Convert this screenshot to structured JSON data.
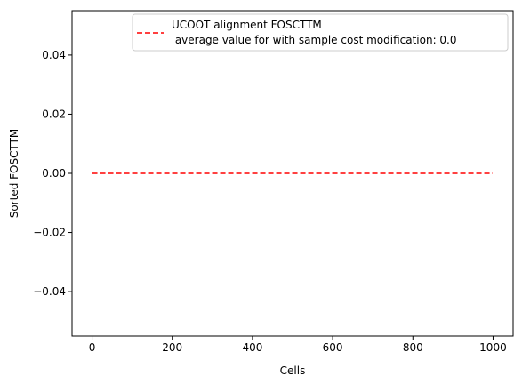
{
  "chart_data": {
    "type": "line",
    "xlabel": "Cells",
    "ylabel": "Sorted FOSCTTM",
    "xlim": [
      -50,
      1050
    ],
    "ylim": [
      -0.055,
      0.055
    ],
    "x_ticks": [
      0,
      200,
      400,
      600,
      800,
      1000
    ],
    "x_tick_labels": [
      "0",
      "200",
      "400",
      "600",
      "800",
      "1000"
    ],
    "y_ticks": [
      0.04,
      0.02,
      0.0,
      -0.02,
      -0.04
    ],
    "y_tick_labels": [
      "0.04",
      "0.02",
      "0.00",
      "−0.02",
      "−0.04"
    ],
    "grid": false,
    "legend_position": "top-right",
    "series": [
      {
        "name_line1": "UCOOT alignment FOSCTTM",
        "name_line2": " average value for with sample cost modification: 0.0",
        "color": "#ff0000",
        "line_style": "dashed",
        "x": [
          0,
          999
        ],
        "y": [
          0.0,
          0.0
        ]
      }
    ]
  }
}
